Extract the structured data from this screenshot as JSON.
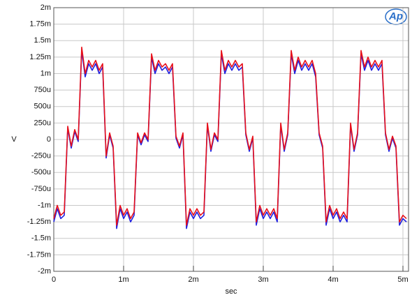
{
  "chart_data": {
    "type": "line",
    "logo": "Ap",
    "xlabel": "sec",
    "ylabel": "V",
    "xlim": [
      0,
      0.00508
    ],
    "ylim": [
      -0.002,
      0.002
    ],
    "xticks": [
      0,
      {
        "value": 0.001,
        "label": "1m"
      },
      {
        "value": 0.002,
        "label": "2m"
      },
      {
        "value": 0.003,
        "label": "3m"
      },
      {
        "value": 0.004,
        "label": "4m"
      },
      {
        "value": 0.005,
        "label": "5m"
      }
    ],
    "yticks": [
      {
        "value": 0.002,
        "label": "2m"
      },
      {
        "value": 0.00175,
        "label": "1.75m"
      },
      {
        "value": 0.0015,
        "label": "1.5m"
      },
      {
        "value": 0.00125,
        "label": "1.25m"
      },
      {
        "value": 0.001,
        "label": "1m"
      },
      {
        "value": 0.00075,
        "label": "750u"
      },
      {
        "value": 0.0005,
        "label": "500u"
      },
      {
        "value": 0.00025,
        "label": "250u"
      },
      0,
      {
        "value": -0.00025,
        "label": "-250u"
      },
      {
        "value": -0.0005,
        "label": "-500u"
      },
      {
        "value": -0.00075,
        "label": "-750u"
      },
      {
        "value": -0.001,
        "label": "-1m"
      },
      {
        "value": -0.00125,
        "label": "-1.25m"
      },
      {
        "value": -0.0015,
        "label": "-1.5m"
      },
      {
        "value": -0.00175,
        "label": "-1.75m"
      },
      {
        "value": -0.002,
        "label": "-2m"
      }
    ],
    "grid": true,
    "x": [
      0,
      5e-05,
      0.0001,
      0.00015,
      0.0002,
      0.00025,
      0.0003,
      0.00035,
      0.0004,
      0.00045,
      0.0005,
      0.00055,
      0.0006,
      0.00065,
      0.0007,
      0.00075,
      0.0008,
      0.00085,
      0.0009,
      0.00095,
      0.001,
      0.00105,
      0.0011,
      0.00115,
      0.0012,
      0.00125,
      0.0013,
      0.00135,
      0.0014,
      0.00145,
      0.0015,
      0.00155,
      0.0016,
      0.00165,
      0.0017,
      0.00175,
      0.0018,
      0.00185,
      0.0019,
      0.00195,
      0.002,
      0.00205,
      0.0021,
      0.00215,
      0.0022,
      0.00225,
      0.0023,
      0.00235,
      0.0024,
      0.00245,
      0.0025,
      0.00255,
      0.0026,
      0.00265,
      0.0027,
      0.00275,
      0.0028,
      0.00285,
      0.0029,
      0.00295,
      0.003,
      0.00305,
      0.0031,
      0.00315,
      0.0032,
      0.00325,
      0.0033,
      0.00335,
      0.0034,
      0.00345,
      0.0035,
      0.00355,
      0.0036,
      0.00365,
      0.0037,
      0.00375,
      0.0038,
      0.00385,
      0.0039,
      0.00395,
      0.004,
      0.00405,
      0.0041,
      0.00415,
      0.0042,
      0.00425,
      0.0043,
      0.00435,
      0.0044,
      0.00445,
      0.0045,
      0.00455,
      0.0046,
      0.00465,
      0.0047,
      0.00475,
      0.0048,
      0.00485,
      0.0049,
      0.00495,
      0.005,
      0.00505
    ],
    "series": [
      {
        "color": "#1f1fe0",
        "values": [
          -0.00125,
          -0.00105,
          -0.0012,
          -0.00115,
          0.00017,
          -0.00013,
          0.00012,
          -3e-05,
          0.00135,
          0.00095,
          0.00115,
          0.00105,
          0.00115,
          0.001,
          0.0011,
          -0.00028,
          7e-05,
          -0.00013,
          -0.00135,
          -0.00105,
          -0.0012,
          -0.0011,
          -0.00125,
          -0.00115,
          7e-05,
          -8e-05,
          7e-05,
          -3e-05,
          0.00125,
          0.001,
          0.00115,
          0.00105,
          0.0011,
          0.001,
          0.0011,
          2e-05,
          -0.00013,
          7e-05,
          -0.00135,
          -0.0011,
          -0.0012,
          -0.0011,
          -0.0012,
          -0.00115,
          0.00022,
          -0.00018,
          7e-05,
          -3e-05,
          0.0013,
          0.001,
          0.00115,
          0.00105,
          0.00115,
          0.00105,
          0.0011,
          7e-05,
          -0.00018,
          2e-05,
          -0.0013,
          -0.00105,
          -0.0012,
          -0.0011,
          -0.0012,
          -0.0011,
          -0.00125,
          0.00022,
          -0.00018,
          7e-05,
          0.0013,
          0.001,
          0.0012,
          0.00105,
          0.00115,
          0.00105,
          0.00115,
          0.00095,
          7e-05,
          -0.00013,
          -0.0013,
          -0.00105,
          -0.0012,
          -0.0011,
          -0.00125,
          -0.00115,
          -0.00125,
          0.00022,
          -0.00018,
          7e-05,
          0.0013,
          0.00105,
          0.0012,
          0.00105,
          0.00115,
          0.00105,
          0.00115,
          7e-05,
          -0.00018,
          2e-05,
          -0.00013,
          -0.0013,
          -0.0012,
          -0.00125
        ]
      },
      {
        "color": "#e8101a",
        "values": [
          -0.0012,
          -0.001,
          -0.00115,
          -0.0011,
          0.0002,
          -0.0001,
          0.00015,
          0,
          0.0014,
          0.001,
          0.0012,
          0.0011,
          0.0012,
          0.00105,
          0.00115,
          -0.00025,
          0.0001,
          -0.0001,
          -0.0013,
          -0.001,
          -0.00115,
          -0.00105,
          -0.0012,
          -0.0011,
          0.0001,
          -5e-05,
          0.0001,
          0,
          0.0013,
          0.00105,
          0.0012,
          0.0011,
          0.00115,
          0.00105,
          0.00115,
          5e-05,
          -0.0001,
          0.0001,
          -0.0013,
          -0.00105,
          -0.00115,
          -0.00105,
          -0.00115,
          -0.0011,
          0.00025,
          -0.00015,
          0.0001,
          0,
          0.00135,
          0.00105,
          0.0012,
          0.0011,
          0.0012,
          0.0011,
          0.00115,
          0.0001,
          -0.00015,
          5e-05,
          -0.00125,
          -0.001,
          -0.00115,
          -0.00105,
          -0.00115,
          -0.00105,
          -0.0012,
          0.00025,
          -0.00015,
          0.0001,
          0.00135,
          0.00105,
          0.00125,
          0.0011,
          0.0012,
          0.0011,
          0.0012,
          0.001,
          0.0001,
          -0.0001,
          -0.00125,
          -0.001,
          -0.00115,
          -0.00105,
          -0.0012,
          -0.0011,
          -0.0012,
          0.00025,
          -0.00015,
          0.0001,
          0.00135,
          0.0011,
          0.00125,
          0.0011,
          0.0012,
          0.0011,
          0.0012,
          0.0001,
          -0.00015,
          5e-05,
          -0.0001,
          -0.00125,
          -0.00115,
          -0.0012
        ]
      }
    ]
  }
}
